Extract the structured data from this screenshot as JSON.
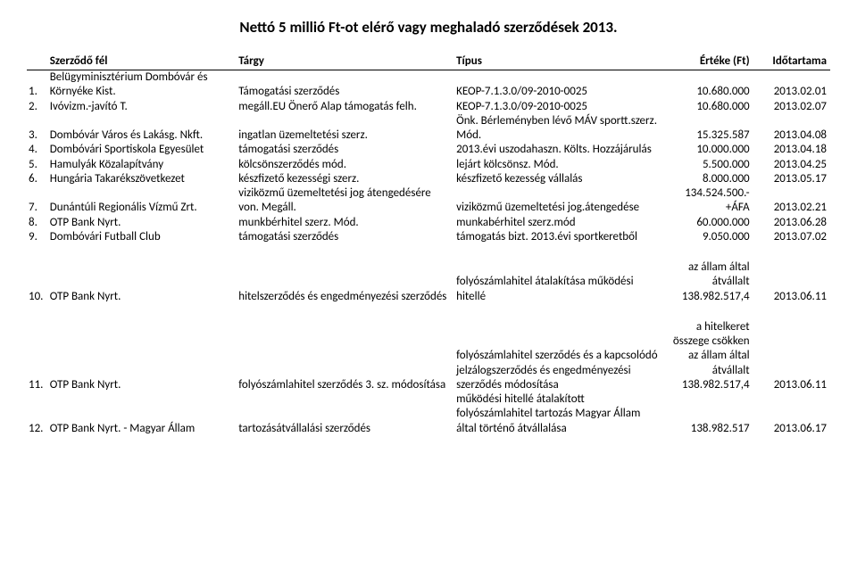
{
  "title": "Nettó 5 millió Ft-ot elérő vagy meghaladó szerződések 2013.",
  "headers": {
    "num": "",
    "party": "Szerződő fél",
    "subject": "Tárgy",
    "type": "Típus",
    "value": "Értéke (Ft)",
    "duration": "Időtartama"
  },
  "rows": [
    {
      "num": "1.",
      "party": "Belügyminisztérium Dombóvár és Környéke Kist.",
      "subject": "Támogatási szerződés",
      "type": "KEOP-7.1.3.0/09-2010-0025",
      "value": "10.680.000",
      "duration": "2013.02.01"
    },
    {
      "num": "2.",
      "party": "Ivóvizm.-javító T.",
      "subject": "megáll.EU Önerő Alap támogatás felh.",
      "type": "KEOP-7.1.3.0/09-2010-0025",
      "value": "10.680.000",
      "duration": "2013.02.07"
    },
    {
      "num": "3.",
      "party": "Dombóvár Város és Lakásg. Nkft.",
      "subject": "ingatlan üzemeltetési szerz.",
      "type": "Önk. Bérleményben lévő MÁV sportt.szerz. Mód.",
      "value": "15.325.587",
      "duration": "2013.04.08"
    },
    {
      "num": "4.",
      "party": "Dombóvári Sportiskola Egyesület",
      "subject": "támogatási szerződés",
      "type": "2013.évi uszodahaszn. Költs. Hozzájárulás",
      "value": "10.000.000",
      "duration": "2013.04.18"
    },
    {
      "num": "5.",
      "party": "Hamulyák Közalapítvány",
      "subject": "kölcsönszerződés mód.",
      "type": "lejárt kölcsönsz. Mód.",
      "value": "5.500.000",
      "duration": "2013.04.25"
    },
    {
      "num": "6.",
      "party": "Hungária Takarékszövetkezet",
      "subject": "készfizető kezességi szerz.",
      "type": "készfizető kezesség vállalás",
      "value": "8.000.000",
      "duration": "2013.05.17"
    },
    {
      "num": "7.",
      "party": "Dunántúli Regionális Vízmű Zrt.",
      "subject": "viziközmű üzemeltetési jog átengedésére von. Megáll.",
      "type": "viziközmű üzemeltetési jog.átengedése",
      "value": "134.524.500.-+ÁFA",
      "duration": "2013.02.21"
    },
    {
      "num": "8.",
      "party": "OTP Bank Nyrt.",
      "subject": "munkbérhitel szerz. Mód.",
      "type": "munkabérhitel szerz.mód",
      "value": "60.000.000",
      "duration": "2013.06.28"
    },
    {
      "num": "9.",
      "party": "Dombóvári Futball Club",
      "subject": "támogatási szerződés",
      "type": "támogatás bizt. 2013.évi sportkeretből",
      "value": "9.050.000",
      "duration": "2013.07.02"
    },
    {
      "num": "10.",
      "party": "OTP Bank Nyrt.",
      "subject": "hitelszerződés és engedményezési szerződés",
      "type": "folyószámlahitel átalakítása működési hitellé",
      "value": "az állam által átvállalt 138.982.517,4",
      "duration": "2013.06.11"
    },
    {
      "num": "11.",
      "party": "OTP Bank Nyrt.",
      "subject": "folyószámlahitel szerződés 3. sz. módosítása",
      "type": "folyószámlahitel szerződés és a kapcsolódó jelzálogszerződés és engedményezési szerződés módosítása",
      "value": "a hitelkeret összege csökken az állam által átvállalt 138.982.517,4",
      "duration": "2013.06.11"
    },
    {
      "num": "12.",
      "party": "OTP Bank Nyrt. - Magyar Állam",
      "subject": "tartozásátvállalási szerződés",
      "type": "működési hitellé átalakított folyószámlahitel tartozás Magyar Állam által történő átvállalása",
      "value": "138.982.517",
      "duration": "2013.06.17"
    }
  ]
}
